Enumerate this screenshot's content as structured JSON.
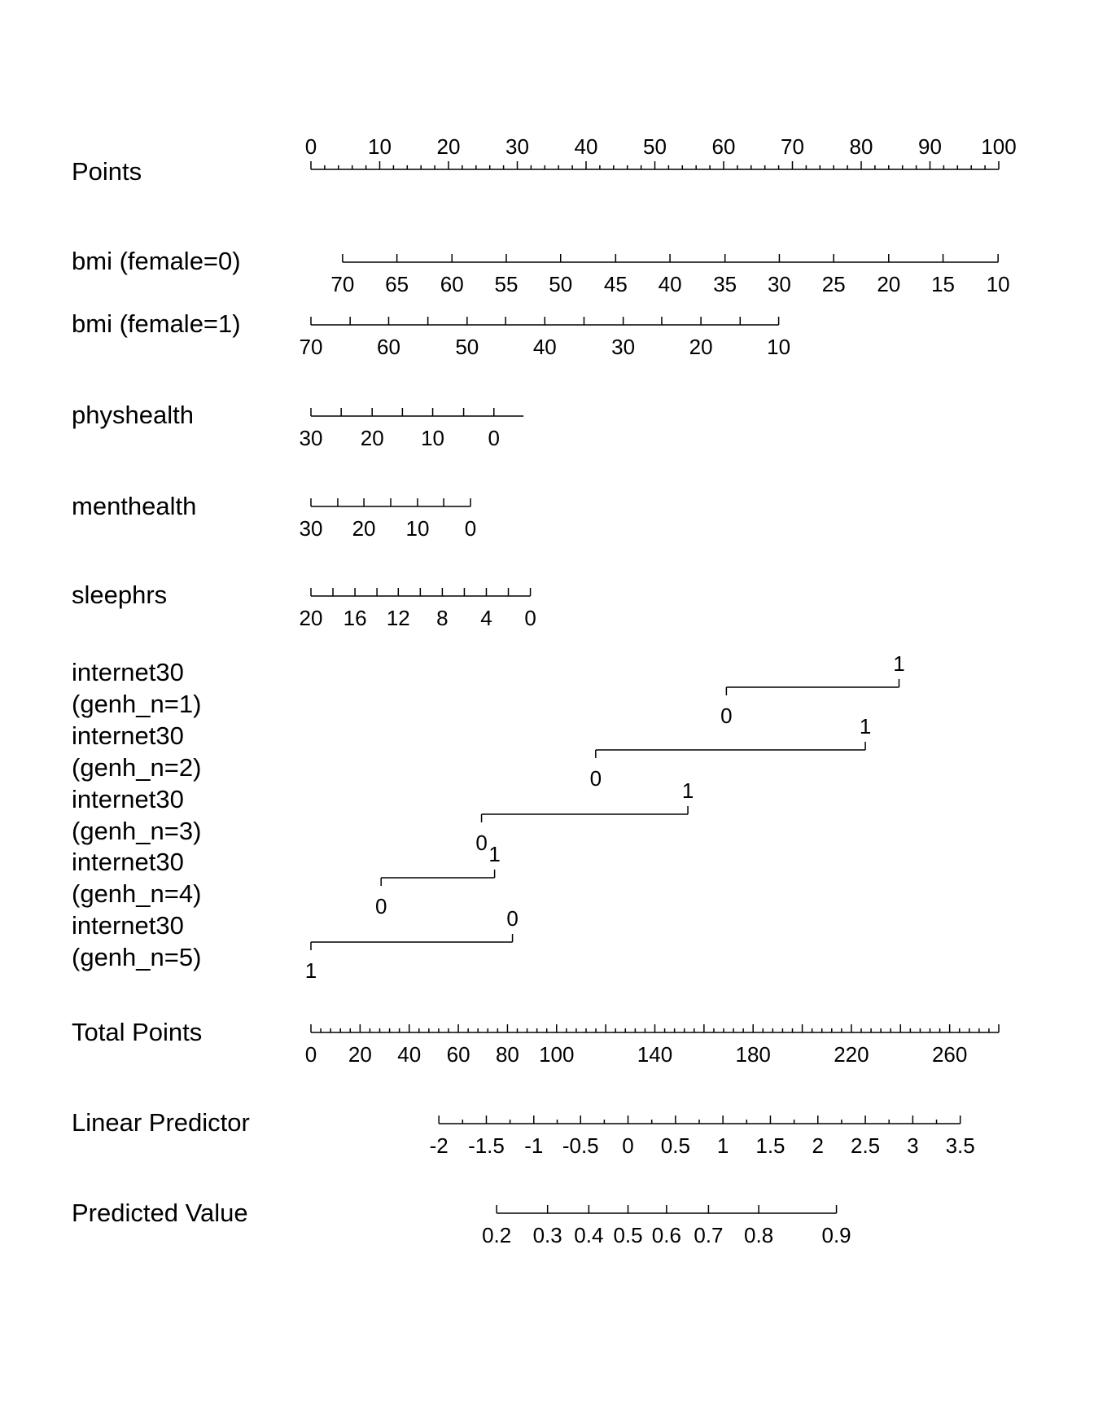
{
  "chart_data": {
    "type": "nomogram",
    "rows": [
      {
        "label": [
          "Points"
        ],
        "kind": "points",
        "ticks": [
          0,
          10,
          20,
          30,
          40,
          50,
          60,
          70,
          80,
          90,
          100
        ],
        "minor_step": 2
      },
      {
        "label": [
          "bmi (female=0)"
        ],
        "kind": "scale",
        "labels_below": true,
        "ticks": [
          {
            "v": 70,
            "p": 4.6
          },
          {
            "v": 65,
            "p": 12.5
          },
          {
            "v": 60,
            "p": 20.5
          },
          {
            "v": 55,
            "p": 28.4
          },
          {
            "v": 50,
            "p": 36.3
          },
          {
            "v": 45,
            "p": 44.3
          },
          {
            "v": 40,
            "p": 52.2
          },
          {
            "v": 35,
            "p": 60.2
          },
          {
            "v": 30,
            "p": 68.1
          },
          {
            "v": 25,
            "p": 76.0
          },
          {
            "v": 20,
            "p": 84.0
          },
          {
            "v": 15,
            "p": 91.9
          },
          {
            "v": 10,
            "p": 99.9
          }
        ]
      },
      {
        "label": [
          "bmi (female=1)"
        ],
        "kind": "scale",
        "labels_below": true,
        "ticks": [
          {
            "v": 70,
            "p": 0
          },
          {
            "v": 65,
            "p": 5.7
          },
          {
            "v": 60,
            "p": 11.3
          },
          {
            "v": 55,
            "p": 17.0
          },
          {
            "v": 50,
            "p": 22.7
          },
          {
            "v": 45,
            "p": 28.3
          },
          {
            "v": 40,
            "p": 34.0
          },
          {
            "v": 35,
            "p": 39.7
          },
          {
            "v": 30,
            "p": 45.4
          },
          {
            "v": 25,
            "p": 51.0
          },
          {
            "v": 20,
            "p": 56.7
          },
          {
            "v": 15,
            "p": 62.4
          },
          {
            "v": 10,
            "p": 68.0
          }
        ],
        "show_labels": [
          70,
          60,
          50,
          40,
          30,
          20,
          10
        ]
      },
      {
        "label": [
          "physhealth"
        ],
        "kind": "scale",
        "labels_below": true,
        "ticks": [
          {
            "v": 30,
            "p": 0
          },
          {
            "v": 25,
            "p": 4.4
          },
          {
            "v": 20,
            "p": 8.9
          },
          {
            "v": 15,
            "p": 13.3
          },
          {
            "v": 10,
            "p": 17.7
          },
          {
            "v": 5,
            "p": 22.2
          },
          {
            "v": 0,
            "p": 26.6
          }
        ],
        "line_end": 30.9,
        "show_labels": [
          30,
          20,
          10,
          0
        ]
      },
      {
        "label": [
          "menthealth"
        ],
        "kind": "scale",
        "labels_below": true,
        "ticks": [
          {
            "v": 30,
            "p": 0
          },
          {
            "v": 25,
            "p": 3.9
          },
          {
            "v": 20,
            "p": 7.7
          },
          {
            "v": 15,
            "p": 11.6
          },
          {
            "v": 10,
            "p": 15.5
          },
          {
            "v": 5,
            "p": 19.3
          },
          {
            "v": 0,
            "p": 23.2
          }
        ],
        "show_labels": [
          30,
          20,
          10,
          0
        ]
      },
      {
        "label": [
          "sleephrs"
        ],
        "kind": "scale",
        "labels_below": true,
        "ticks": [
          {
            "v": 20,
            "p": 0
          },
          {
            "v": 18,
            "p": 3.2
          },
          {
            "v": 16,
            "p": 6.4
          },
          {
            "v": 14,
            "p": 9.6
          },
          {
            "v": 12,
            "p": 12.7
          },
          {
            "v": 10,
            "p": 15.9
          },
          {
            "v": 8,
            "p": 19.1
          },
          {
            "v": 6,
            "p": 22.3
          },
          {
            "v": 4,
            "p": 25.5
          },
          {
            "v": 2,
            "p": 28.7
          },
          {
            "v": 0,
            "p": 31.9
          }
        ],
        "show_labels": [
          20,
          16,
          12,
          8,
          4,
          0
        ]
      },
      {
        "label": [
          "internet30",
          "(genh_n=1)"
        ],
        "kind": "binary",
        "ticks": [
          {
            "v": 0,
            "p": 60.4,
            "pos": "below"
          },
          {
            "v": 1,
            "p": 85.5,
            "pos": "above"
          }
        ]
      },
      {
        "label": [
          "internet30",
          "(genh_n=2)"
        ],
        "kind": "binary",
        "ticks": [
          {
            "v": 0,
            "p": 41.4,
            "pos": "below"
          },
          {
            "v": 1,
            "p": 80.6,
            "pos": "above"
          }
        ]
      },
      {
        "label": [
          "internet30",
          "(genh_n=3)"
        ],
        "kind": "binary",
        "ticks": [
          {
            "v": 0,
            "p": 24.8,
            "pos": "below"
          },
          {
            "v": 1,
            "p": 54.8,
            "pos": "above"
          }
        ]
      },
      {
        "label": [
          "internet30",
          "(genh_n=4)"
        ],
        "kind": "binary",
        "ticks": [
          {
            "v": 0,
            "p": 10.2,
            "pos": "below"
          },
          {
            "v": 1,
            "p": 26.7,
            "pos": "above"
          }
        ]
      },
      {
        "label": [
          "internet30",
          "(genh_n=5)"
        ],
        "kind": "binary",
        "ticks": [
          {
            "v": 1,
            "p": 0,
            "pos": "below"
          },
          {
            "v": 0,
            "p": 29.3,
            "pos": "above"
          }
        ]
      },
      {
        "label": [
          "Total Points"
        ],
        "kind": "total",
        "min": 0,
        "max": 280,
        "minor_step": 4,
        "show_labels": [
          0,
          20,
          40,
          60,
          80,
          100,
          140,
          180,
          220,
          260
        ]
      },
      {
        "label": [
          "Linear Predictor"
        ],
        "kind": "scale",
        "labels_below": true,
        "minor_between": true,
        "ticks": [
          {
            "v": "-2",
            "p": 18.6
          },
          {
            "v": "-1.5",
            "p": 25.5
          },
          {
            "v": "-1",
            "p": 32.4
          },
          {
            "v": "-0.5",
            "p": 39.2
          },
          {
            "v": "0",
            "p": 46.1
          },
          {
            "v": "0.5",
            "p": 53.0
          },
          {
            "v": "1",
            "p": 59.9
          },
          {
            "v": "1.5",
            "p": 66.8
          },
          {
            "v": "2",
            "p": 73.7
          },
          {
            "v": "2.5",
            "p": 80.6
          },
          {
            "v": "3",
            "p": 87.5
          },
          {
            "v": "3.5",
            "p": 94.4
          }
        ]
      },
      {
        "label": [
          "Predicted Value"
        ],
        "kind": "scale",
        "labels_below": true,
        "ticks": [
          {
            "v": "0.2",
            "p": 27.0
          },
          {
            "v": "0.3",
            "p": 34.4
          },
          {
            "v": "0.4",
            "p": 40.4
          },
          {
            "v": "0.5",
            "p": 46.1
          },
          {
            "v": "0.6",
            "p": 51.7
          },
          {
            "v": "0.7",
            "p": 57.8
          },
          {
            "v": "0.8",
            "p": 65.1
          },
          {
            "v": "0.9",
            "p": 76.4
          }
        ]
      }
    ]
  }
}
